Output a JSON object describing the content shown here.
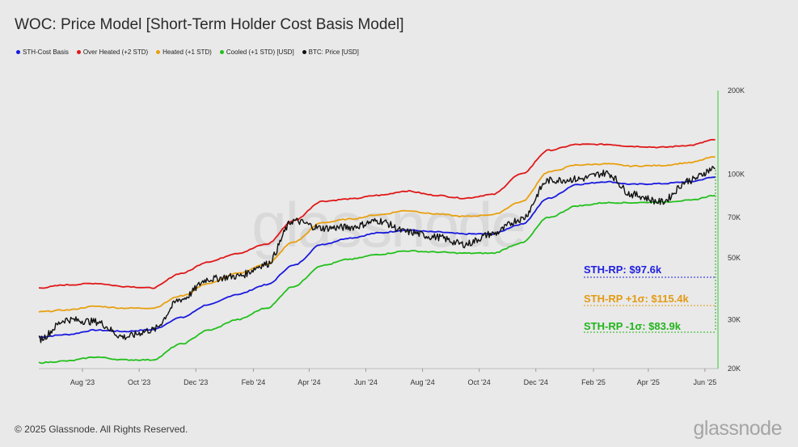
{
  "title": "WOC: Price Model [Short-Term Holder Cost Basis Model]",
  "legend": [
    {
      "label": "STH-Cost Basis",
      "color": "#1a1adf"
    },
    {
      "label": "Over Heated (+2 STD)",
      "color": "#e01818"
    },
    {
      "label": "Heated (+1 STD)",
      "color": "#e8a010"
    },
    {
      "label": "Cooled (+1 STD) [USD]",
      "color": "#22c01c"
    },
    {
      "label": "BTC: Price [USD]",
      "color": "#111111"
    }
  ],
  "footer": "© 2025 Glassnode. All Rights Reserved.",
  "brand": "glassnode",
  "watermark": "glassnode",
  "annotations": [
    {
      "text": "STH-RP: $97.6k",
      "color": "#2020e0"
    },
    {
      "text": "STH-RP +1σ: $115.4k",
      "color": "#e39b12"
    },
    {
      "text": "STH-RP -1σ: $83.9k",
      "color": "#22b51c"
    }
  ],
  "chart_data": {
    "type": "line",
    "yscale": "log",
    "ylim": [
      20000,
      200000
    ],
    "yticks": [
      {
        "value": 20000,
        "label": "20K"
      },
      {
        "value": 30000,
        "label": "30K"
      },
      {
        "value": 50000,
        "label": "50K"
      },
      {
        "value": 70000,
        "label": "70K"
      },
      {
        "value": 100000,
        "label": "100K"
      },
      {
        "value": 200000,
        "label": "200K"
      }
    ],
    "xlim": [
      "2023-06-15",
      "2025-06-15"
    ],
    "xticks": [
      {
        "date": "2023-08-01",
        "label": "Aug '23"
      },
      {
        "date": "2023-10-01",
        "label": "Oct '23"
      },
      {
        "date": "2023-12-01",
        "label": "Dec '23"
      },
      {
        "date": "2024-02-01",
        "label": "Feb '24"
      },
      {
        "date": "2024-04-01",
        "label": "Apr '24"
      },
      {
        "date": "2024-06-01",
        "label": "Jun '24"
      },
      {
        "date": "2024-08-01",
        "label": "Aug '24"
      },
      {
        "date": "2024-10-01",
        "label": "Oct '24"
      },
      {
        "date": "2024-12-01",
        "label": "Dec '24"
      },
      {
        "date": "2025-02-01",
        "label": "Feb '25"
      },
      {
        "date": "2025-04-01",
        "label": "Apr '25"
      },
      {
        "date": "2025-06-01",
        "label": "Jun '25"
      }
    ],
    "x": [
      "2023-06-15",
      "2023-07-15",
      "2023-08-15",
      "2023-09-15",
      "2023-10-15",
      "2023-11-15",
      "2023-12-15",
      "2024-01-15",
      "2024-02-15",
      "2024-03-15",
      "2024-04-15",
      "2024-05-15",
      "2024-06-15",
      "2024-07-15",
      "2024-08-15",
      "2024-09-15",
      "2024-10-15",
      "2024-11-15",
      "2024-12-15",
      "2025-01-15",
      "2025-02-15",
      "2025-03-15",
      "2025-04-15",
      "2025-05-15",
      "2025-06-12"
    ],
    "series": [
      {
        "name": "STH-Cost Basis",
        "color": "#1a1adf",
        "values": [
          26000,
          26500,
          27500,
          27200,
          27600,
          30500,
          34000,
          37000,
          40000,
          47000,
          56000,
          59000,
          61500,
          63000,
          62000,
          61000,
          61000,
          66000,
          82000,
          92000,
          94000,
          92000,
          92500,
          94000,
          97600
        ]
      },
      {
        "name": "Over Heated (+2 STD)",
        "color": "#e01818",
        "values": [
          39000,
          40000,
          40500,
          39500,
          39000,
          44000,
          48500,
          52000,
          56000,
          68000,
          80000,
          81500,
          84000,
          87000,
          84000,
          82000,
          84500,
          100000,
          122000,
          128000,
          128000,
          126000,
          125000,
          127000,
          133000
        ]
      },
      {
        "name": "Heated (+1 STD)",
        "color": "#e8a010",
        "values": [
          32000,
          32500,
          33500,
          33000,
          33000,
          36500,
          40500,
          44000,
          47500,
          57000,
          67000,
          69000,
          71500,
          74000,
          72000,
          70500,
          71500,
          79500,
          102000,
          108000,
          109000,
          107000,
          107500,
          110000,
          115400
        ]
      },
      {
        "name": "Cooled (+1 STD) [USD]",
        "color": "#22c01c",
        "values": [
          21000,
          21300,
          22000,
          21500,
          21500,
          24500,
          27500,
          30000,
          33000,
          39500,
          47000,
          49500,
          51500,
          53000,
          52500,
          52000,
          52000,
          56500,
          70000,
          77000,
          79000,
          79000,
          79500,
          80500,
          83900
        ]
      },
      {
        "name": "BTC: Price [USD]",
        "color": "#111111",
        "values": [
          25500,
          30000,
          29500,
          26000,
          27500,
          35500,
          42000,
          43000,
          47500,
          68000,
          64000,
          64500,
          68000,
          62000,
          59500,
          56000,
          61000,
          69000,
          95000,
          96000,
          101000,
          84500,
          79500,
          95000,
          105000
        ]
      }
    ]
  }
}
